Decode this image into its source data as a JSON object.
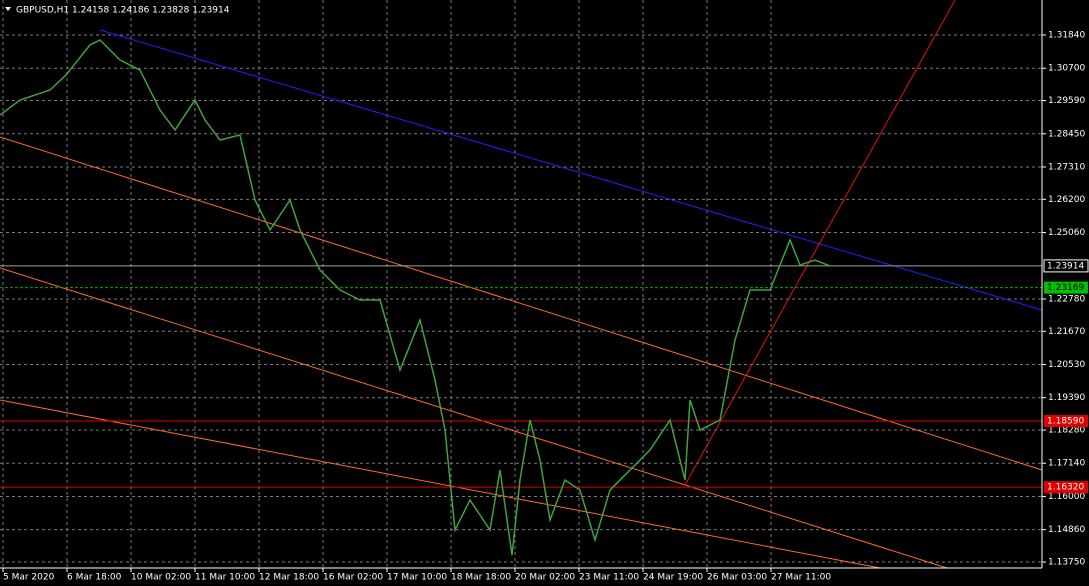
{
  "chart_data": {
    "type": "line",
    "title": "GBPUSD,H1  1.24158 1.24186 1.23828 1.23914",
    "x": [
      0,
      10,
      25,
      33,
      45,
      50,
      60,
      70,
      80,
      87.5,
      97.5,
      102.5,
      110,
      120,
      127.5,
      135,
      145,
      150,
      160,
      170,
      180,
      190,
      200,
      210,
      217.5,
      222.5,
      227.5,
      235,
      245,
      250,
      256,
      260,
      265,
      270,
      275,
      282.5,
      290,
      297.5,
      305,
      315,
      325,
      335,
      342.5,
      345,
      350,
      360,
      367.5,
      375,
      385,
      395,
      400,
      407.5,
      415
    ],
    "series": [
      {
        "name": "GBPUSD,H1",
        "color": "#3fa33f",
        "values": [
          1.29094,
          1.29609,
          1.29952,
          1.30467,
          1.31497,
          1.31668,
          1.30982,
          1.30638,
          1.29265,
          1.28579,
          1.29609,
          1.28922,
          1.28235,
          1.28407,
          1.26176,
          1.25146,
          1.26176,
          1.25146,
          1.23773,
          1.23086,
          1.22743,
          1.22743,
          1.2034,
          1.22056,
          1.19997,
          1.1828,
          1.14847,
          1.15877,
          1.14847,
          1.16907,
          1.13989,
          1.16564,
          1.18623,
          1.1725,
          1.1519,
          1.16564,
          1.1622,
          1.14504,
          1.1622,
          1.16907,
          1.17594,
          1.18623,
          1.16564,
          1.1931,
          1.1828,
          1.18623,
          1.2137,
          1.23086,
          1.23086,
          1.24803,
          1.23944,
          1.24116,
          1.23914
        ]
      }
    ],
    "xlim": [
      0,
      521
    ],
    "xticks": [
      {
        "value": 1.5,
        "label": "5 Mar 2020"
      },
      {
        "value": 33.5,
        "label": "6 Mar 18:00"
      },
      {
        "value": 65.5,
        "label": "10 Mar 02:00"
      },
      {
        "value": 97.5,
        "label": "11 Mar 10:00"
      },
      {
        "value": 129.5,
        "label": "12 Mar 18:00"
      },
      {
        "value": 161.5,
        "label": "16 Mar 02:00"
      },
      {
        "value": 193.5,
        "label": "17 Mar 10:00"
      },
      {
        "value": 225.5,
        "label": "18 Mar 18:00"
      },
      {
        "value": 257.5,
        "label": "20 Mar 02:00"
      },
      {
        "value": 289.5,
        "label": "23 Mar 11:00"
      },
      {
        "value": 321.5,
        "label": "24 Mar 19:00"
      },
      {
        "value": 353.5,
        "label": "26 Mar 03:00"
      },
      {
        "value": 385.5,
        "label": "27 Mar 11:00"
      }
    ],
    "ylim": [
      1.13544,
      1.33042
    ],
    "yticks": [
      {
        "value": 1.3184,
        "label": "1.31840"
      },
      {
        "value": 1.307,
        "label": "1.30700"
      },
      {
        "value": 1.2959,
        "label": "1.29590"
      },
      {
        "value": 1.2845,
        "label": "1.28450"
      },
      {
        "value": 1.2731,
        "label": "1.27310"
      },
      {
        "value": 1.262,
        "label": "1.26200"
      },
      {
        "value": 1.2506,
        "label": "1.25060"
      },
      {
        "value": 1.2278,
        "label": "1.22780"
      },
      {
        "value": 1.2167,
        "label": "1.21670"
      },
      {
        "value": 1.2053,
        "label": "1.20530"
      },
      {
        "value": 1.1939,
        "label": "1.19390"
      },
      {
        "value": 1.1828,
        "label": "1.18280"
      },
      {
        "value": 1.1714,
        "label": "1.17140"
      },
      {
        "value": 1.16,
        "label": "1.16000"
      },
      {
        "value": 1.1486,
        "label": "1.14860"
      },
      {
        "value": 1.1375,
        "label": "1.13750"
      }
    ],
    "levels": [
      {
        "value": 1.23914,
        "label": "1.23914",
        "color": "#a0a0a0",
        "label_color": "#ffffff"
      },
      {
        "value": 1.23169,
        "label": "1.23169",
        "color": "#00b000",
        "label_color": "#00c000"
      },
      {
        "value": 1.1859,
        "label": "1.18590",
        "color": "#e00000",
        "label_color": "#e00000"
      },
      {
        "value": 1.1632,
        "label": "1.16320",
        "color": "#e00000",
        "label_color": "#e00000"
      }
    ],
    "grid": true
  }
}
